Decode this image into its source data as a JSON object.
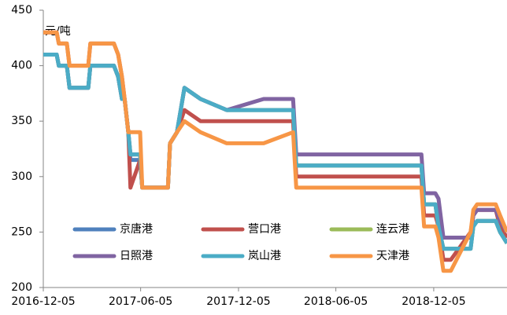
{
  "chart_data": {
    "type": "line",
    "y_label": "元/吨",
    "x": [
      "2016-12-05",
      "2016-12-30",
      "2017-01-03",
      "2017-01-18",
      "2017-01-23",
      "2017-02-27",
      "2017-03-03",
      "2017-04-16",
      "2017-04-24",
      "2017-05-01",
      "2017-05-06",
      "2017-05-13",
      "2017-05-17",
      "2017-06-04",
      "2017-06-08",
      "2017-07-26",
      "2017-07-30",
      "2017-08-12",
      "2017-08-26",
      "2017-09-25",
      "2017-11-13",
      "2018-01-21",
      "2018-03-17",
      "2018-03-23",
      "2018-11-12",
      "2018-11-17",
      "2018-12-08",
      "2018-12-14",
      "2018-12-23",
      "2019-01-06",
      "2019-02-12",
      "2019-02-17",
      "2019-02-24",
      "2019-03-31",
      "2019-04-08",
      "2019-04-21"
    ],
    "series": [
      {
        "name": "京唐港",
        "color": "#4f81bd",
        "values": [
          410,
          410,
          400,
          400,
          380,
          380,
          400,
          400,
          390,
          370,
          370,
          340,
          315,
          315,
          290,
          290,
          330,
          340,
          380,
          370,
          360,
          360,
          360,
          310,
          310,
          275,
          275,
          255,
          235,
          235,
          235,
          255,
          260,
          260,
          250,
          240
        ]
      },
      {
        "name": "营口港",
        "color": "#c0504d",
        "values": [
          430,
          430,
          420,
          420,
          400,
          400,
          420,
          420,
          410,
          390,
          370,
          340,
          290,
          315,
          290,
          290,
          330,
          340,
          360,
          350,
          350,
          350,
          350,
          300,
          300,
          265,
          265,
          255,
          225,
          225,
          250,
          265,
          270,
          270,
          255,
          245
        ]
      },
      {
        "name": "连云港",
        "color": "#9bbb59",
        "values": [
          410,
          410,
          400,
          400,
          380,
          380,
          400,
          400,
          390,
          370,
          370,
          340,
          320,
          320,
          290,
          290,
          330,
          340,
          380,
          370,
          360,
          360,
          360,
          310,
          310,
          275,
          275,
          255,
          235,
          235,
          235,
          255,
          260,
          260,
          250,
          240
        ]
      },
      {
        "name": "日照港",
        "color": "#8064a2",
        "values": [
          410,
          410,
          400,
          400,
          380,
          380,
          400,
          400,
          390,
          370,
          370,
          340,
          320,
          320,
          290,
          290,
          330,
          340,
          380,
          370,
          360,
          370,
          370,
          320,
          320,
          285,
          285,
          280,
          245,
          245,
          245,
          265,
          270,
          270,
          260,
          250
        ]
      },
      {
        "name": "岚山港",
        "color": "#4bacc6",
        "values": [
          410,
          410,
          400,
          400,
          380,
          380,
          400,
          400,
          390,
          370,
          370,
          340,
          320,
          320,
          290,
          290,
          330,
          340,
          380,
          370,
          360,
          360,
          360,
          310,
          310,
          275,
          275,
          255,
          235,
          235,
          235,
          255,
          260,
          260,
          250,
          240
        ]
      },
      {
        "name": "天津港",
        "color": "#f79646",
        "values": [
          430,
          430,
          420,
          420,
          400,
          400,
          420,
          420,
          410,
          390,
          370,
          340,
          340,
          340,
          290,
          290,
          330,
          340,
          350,
          340,
          330,
          330,
          340,
          290,
          290,
          255,
          255,
          245,
          215,
          215,
          250,
          270,
          275,
          275,
          265,
          250
        ]
      }
    ],
    "xlim": [
      "2016-12-05",
      "2019-04-21"
    ],
    "xticks": [
      "2016-12-05",
      "2017-06-05",
      "2017-12-05",
      "2018-06-05",
      "2018-12-05"
    ],
    "ylim": [
      200,
      450
    ],
    "yticks": [
      200,
      250,
      300,
      350,
      400,
      450
    ],
    "grid": false,
    "legend": "bottom"
  }
}
